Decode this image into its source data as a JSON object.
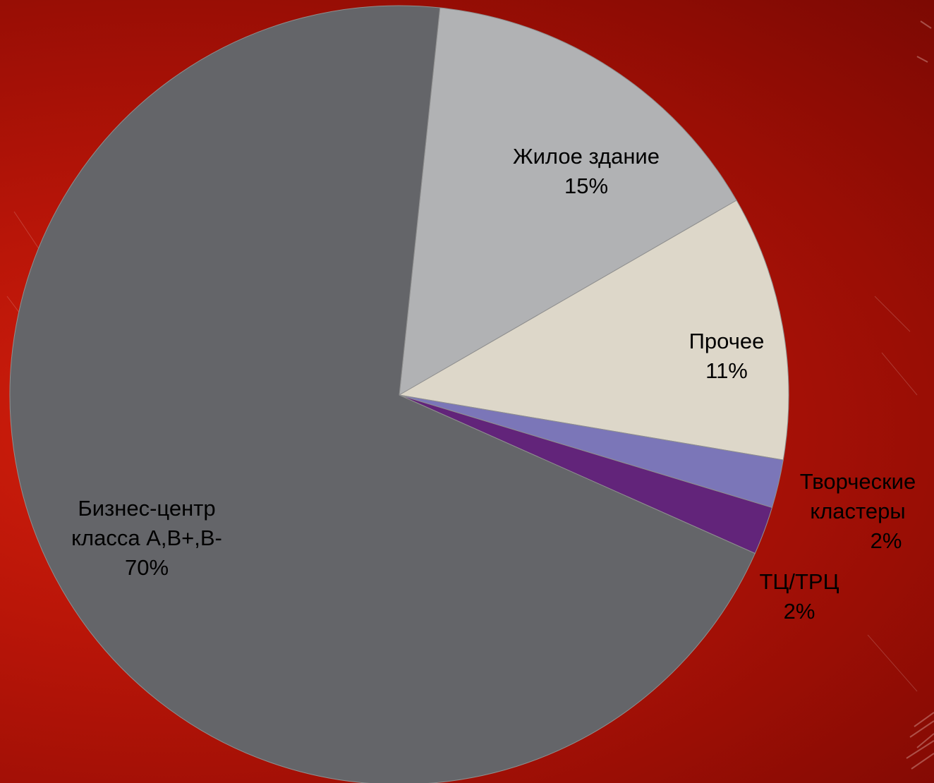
{
  "chart_data": {
    "type": "pie",
    "title": "",
    "start_angle_deg": -84,
    "direction": "clockwise",
    "legend": "none",
    "slices": [
      {
        "name": "Жилое здание",
        "value": 15,
        "label": "15%",
        "color": "#b1b2b4"
      },
      {
        "name": "Прочее",
        "value": 11,
        "label": "11%",
        "color": "#ddd7c9"
      },
      {
        "name": "Творческие кластеры",
        "value": 2,
        "label": "2%",
        "color": "#7b76b8"
      },
      {
        "name": "ТЦ/ТРЦ",
        "value": 2,
        "label": "2%",
        "color": "#62247a"
      },
      {
        "name": "Бизнес-центр класса А,В+,В-",
        "value": 70,
        "label": "70%",
        "color": "#646569"
      }
    ]
  },
  "labels": {
    "residential": {
      "line1": "Жилое здание",
      "line2": "15%"
    },
    "other": {
      "line1": "Прочее",
      "line2": "11%"
    },
    "creative": {
      "line1": "Творческие",
      "line2": "кластеры",
      "line3": "2%"
    },
    "mall": {
      "line1": "ТЦ/ТРЦ",
      "line2": "2%"
    },
    "business": {
      "line1": "Бизнес-центр",
      "line2": "класса А,В+,В-",
      "line3": "70%"
    }
  },
  "colors": {
    "background": "#b81508",
    "label_text": "#000000",
    "slice_stroke": "#8f8f8f"
  }
}
